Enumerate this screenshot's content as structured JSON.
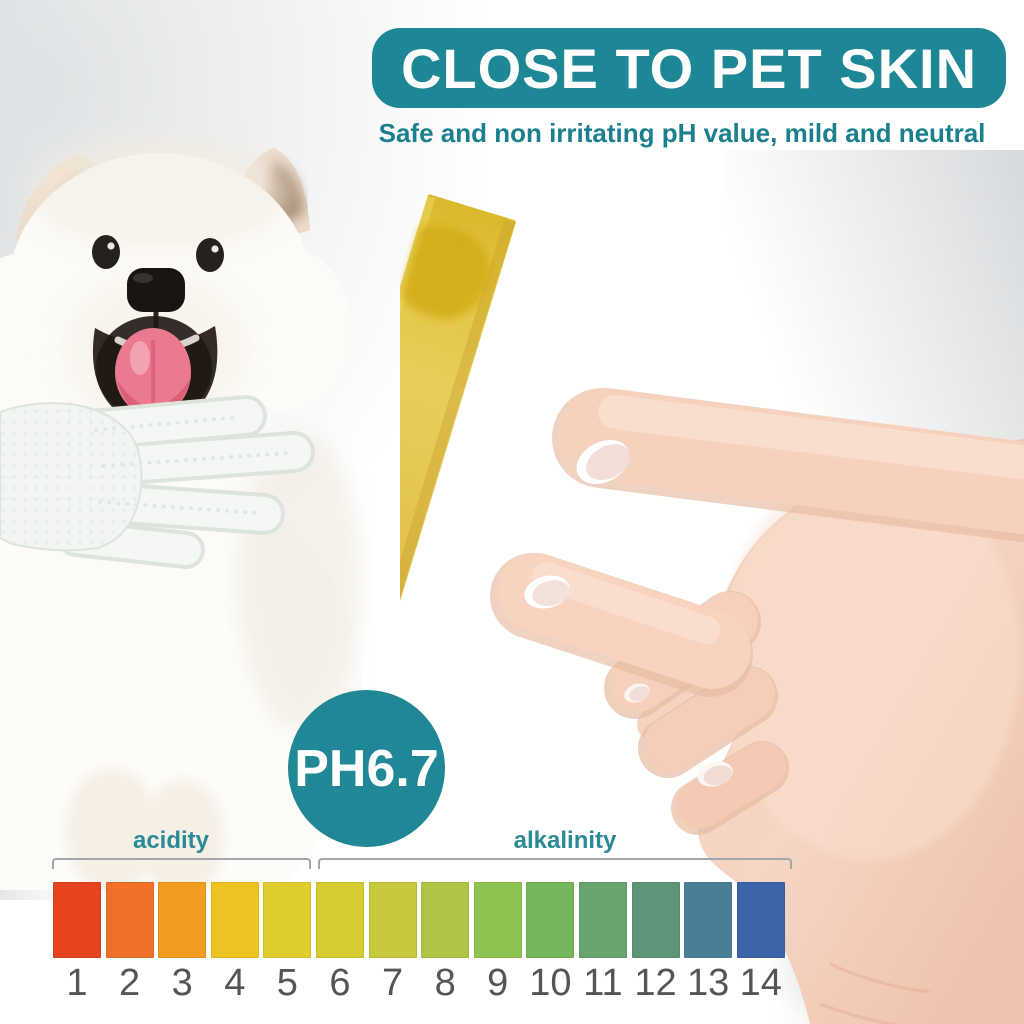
{
  "header": {
    "title": "CLOSE TO PET SKIN",
    "subtitle": "Safe and non irritating pH value, mild and neutral"
  },
  "ph_badge": {
    "label": "PH6.7"
  },
  "ph_scale": {
    "acidity_label": "acidity",
    "alkalinity_label": "alkalinity",
    "items": [
      {
        "value": "1",
        "color": "#e6431f"
      },
      {
        "value": "2",
        "color": "#ef7026"
      },
      {
        "value": "3",
        "color": "#f19c1e"
      },
      {
        "value": "4",
        "color": "#edc322"
      },
      {
        "value": "5",
        "color": "#dfcd2d"
      },
      {
        "value": "6",
        "color": "#d6cc31"
      },
      {
        "value": "7",
        "color": "#c6c93b"
      },
      {
        "value": "8",
        "color": "#adc446"
      },
      {
        "value": "9",
        "color": "#8ec251"
      },
      {
        "value": "10",
        "color": "#74b55b"
      },
      {
        "value": "11",
        "color": "#68a56c"
      },
      {
        "value": "12",
        "color": "#5d9579"
      },
      {
        "value": "13",
        "color": "#4a7e97"
      },
      {
        "value": "14",
        "color": "#3b64a9"
      }
    ]
  },
  "colors": {
    "banner_teal": "#1d8795",
    "badge_teal": "#1f8795",
    "subtitle_teal": "#1b7f8e",
    "scale_label_teal": "#2a8a96",
    "bracket_gray": "#a3a7aa",
    "number_gray": "#555555",
    "strip_yellow": "#e4c44e"
  },
  "illustrations": {
    "dog": "white-fluffy-puppy",
    "glove": "pet-grooming-glove",
    "hand": "hand-holding-ph-test-strip",
    "strip": "yellow-ph-test-strip"
  }
}
